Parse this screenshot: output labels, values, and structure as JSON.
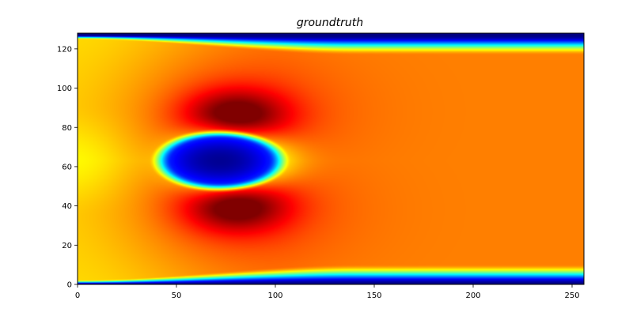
{
  "chart_data": {
    "type": "heatmap",
    "title": "groundtruth",
    "xlabel": "",
    "ylabel": "",
    "xlim": [
      0,
      256
    ],
    "ylim": [
      0,
      128
    ],
    "x_ticks": [
      0,
      50,
      100,
      150,
      200,
      250
    ],
    "y_ticks": [
      0,
      20,
      40,
      60,
      80,
      100,
      120
    ],
    "colormap": "jet",
    "grid": false,
    "field_description": "Velocity magnitude of channel flow around an obstacle: low values near top/bottom walls and at the obstacle centered near (72, 63); high values above and below the obstacle; uniform moderately-high field downstream."
  }
}
